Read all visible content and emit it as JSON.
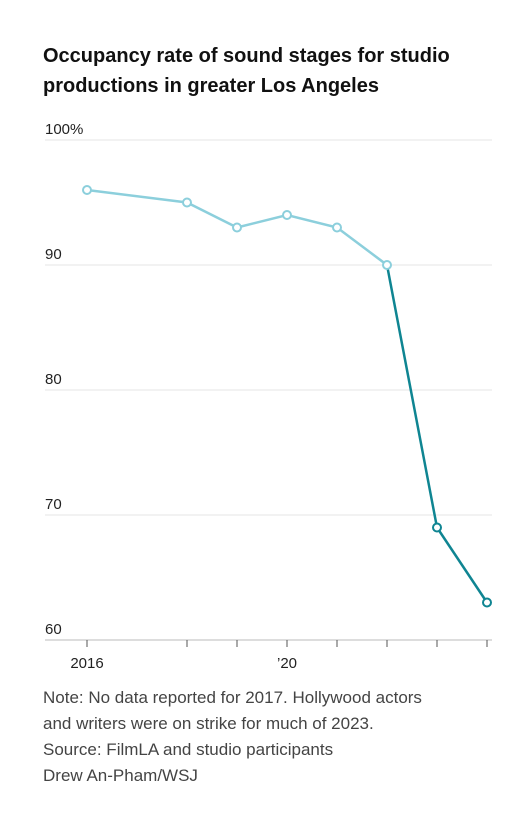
{
  "chart_data": {
    "type": "line",
    "title": [
      "Occupancy rate of sound stages for studio",
      "productions in greater Los Angeles"
    ],
    "x": [
      2016,
      2018,
      2019,
      2020,
      2021,
      2022,
      2023,
      2024
    ],
    "series": [
      {
        "color": "#8ccfdc",
        "values": [
          96,
          95,
          93,
          94,
          93,
          90,
          null,
          null
        ]
      },
      {
        "color": "#0f8592",
        "values": [
          null,
          null,
          null,
          null,
          null,
          90,
          69,
          63
        ]
      }
    ],
    "xlim": [
      2015.16,
      2024.1
    ],
    "xticks": [
      2016,
      {
        "value": 2020,
        "label": "’20"
      }
    ],
    "minor_xticks": [
      2018,
      2019,
      2021,
      2022,
      2023,
      2024
    ],
    "ylim": [
      60,
      100
    ],
    "yticks": [
      {
        "value": 100,
        "label": "100%"
      },
      90,
      80,
      70,
      60
    ],
    "grid": true,
    "notes": [
      "Note: No data reported for 2017. Hollywood actors",
      "and writers were on strike for much of 2023.",
      "Source: FilmLA and studio participants",
      "Drew An-Pham/WSJ"
    ]
  }
}
